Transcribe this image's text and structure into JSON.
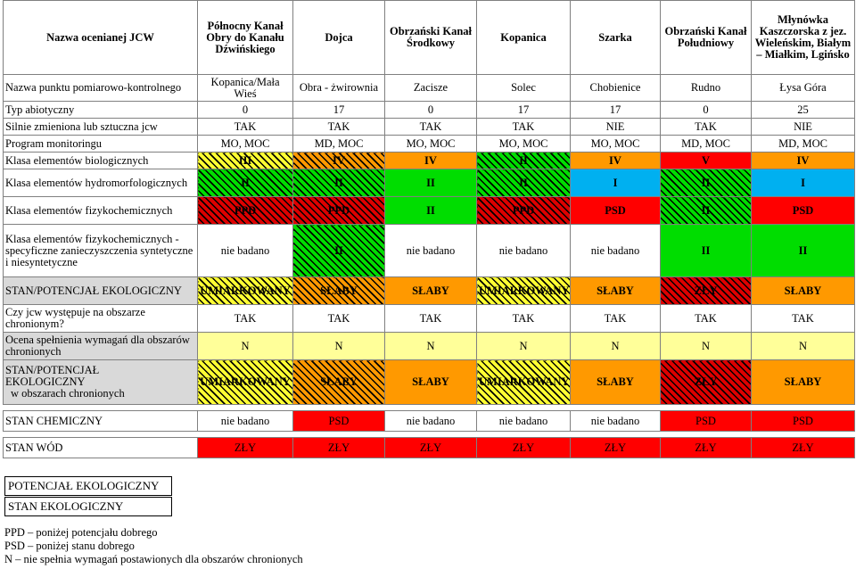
{
  "header": {
    "label": "Nazwa ocenianej JCW",
    "columns": [
      "Północny Kanał Obry do Kanału Dźwińskiego",
      "Dojca",
      "Obrzański Kanał Środkowy",
      "Kopanica",
      "Szarka",
      "Obrzański Kanał Południowy",
      "Młynówka Kaszczorska z jez. Wieleńskim, Białym – Miałkim, Lgińsko"
    ]
  },
  "rows": [
    {
      "label": "Nazwa punktu pomiarowo-kontrolnego",
      "cells": [
        "Kopanica/Mała Wieś",
        "Obra - żwirownia",
        "Zacisze",
        "Solec",
        "Chobienice",
        "Rudno",
        "Łysa Góra"
      ]
    },
    {
      "label": "Typ abiotyczny",
      "cells": [
        "0",
        "17",
        "0",
        "17",
        "17",
        "0",
        "25"
      ]
    },
    {
      "label": "Silnie zmieniona lub sztuczna jcw",
      "cells": [
        "TAK",
        "TAK",
        "TAK",
        "TAK",
        "NIE",
        "TAK",
        "NIE"
      ]
    },
    {
      "label": "Program monitoringu",
      "cells": [
        "MO, MOC",
        "MD, MOC",
        "MO, MOC",
        "MO, MOC",
        "MO, MOC",
        "MD, MOC",
        "MD, MOC"
      ]
    },
    {
      "label": "Klasa elementów biologicznych",
      "cells": [
        "III",
        "IV",
        "IV",
        "II",
        "IV",
        "V",
        "IV"
      ]
    },
    {
      "label": "Klasa elementów hydromorfologicznych",
      "cells": [
        "II",
        "II",
        "II",
        "II",
        "I",
        "II",
        "I"
      ]
    },
    {
      "label": "Klasa elementów fizykochemicznych",
      "cells": [
        "PPD",
        "PPD",
        "II",
        "PPD",
        "PSD",
        "II",
        "PSD"
      ]
    },
    {
      "label": "Klasa elementów fizykochemicznych - specyficzne zanieczyszczenia syntetyczne i niesyntetyczne",
      "cells": [
        "nie badano",
        "II",
        "nie badano",
        "nie badano",
        "nie badano",
        "II",
        "II"
      ]
    },
    {
      "label": "STAN/POTENCJAŁ EKOLOGICZNY",
      "cells": [
        "UMIARKOWANY",
        "SŁABY",
        "SŁABY",
        "UMIARKOWANY",
        "SŁABY",
        "ZŁY",
        "SŁABY"
      ]
    },
    {
      "label": "Czy jcw występuje na obszarze chronionym?",
      "cells": [
        "TAK",
        "TAK",
        "TAK",
        "TAK",
        "TAK",
        "TAK",
        "TAK"
      ]
    },
    {
      "label": "Ocena spełnienia wymagań dla obszarów chronionych",
      "cells": [
        "N",
        "N",
        "N",
        "N",
        "N",
        "N",
        "N"
      ]
    },
    {
      "label_lines": [
        "STAN/POTENCJAŁ",
        "EKOLOGICZNY",
        "w obszarach chronionych"
      ],
      "cells": [
        "UMIARKOWANY",
        "SŁABY",
        "SŁABY",
        "UMIARKOWANY",
        "SŁABY",
        "ZŁY",
        "SŁABY"
      ]
    },
    {
      "label": "STAN CHEMICZNY",
      "cells": [
        "nie badano",
        "PSD",
        "nie badano",
        "nie badano",
        "nie badano",
        "PSD",
        "PSD"
      ]
    },
    {
      "label": "STAN WÓD",
      "cells": [
        "ZŁY",
        "ZŁY",
        "ZŁY",
        "ZŁY",
        "ZŁY",
        "ZŁY",
        "ZŁY"
      ]
    }
  ],
  "legend": {
    "potential": "POTENCJAŁ EKOLOGICZNY",
    "state": "STAN EKOLOGICZNY"
  },
  "notes": [
    "PPD – poniżej potencjału dobrego",
    "PSD – poniżej stanu dobrego",
    "N – nie spełnia wymagań postawionych dla obszarów chronionych"
  ],
  "colors": {
    "hatch_orange": "#ff9900",
    "hatch_red": "#dd0000",
    "hatch_yellow": "#ffff33",
    "green": "#00dd00",
    "blue": "#00b0f0",
    "orange": "#ff9900",
    "red": "#ff0000",
    "yellow": "#ffff99",
    "gray": "#d9d9d9"
  }
}
